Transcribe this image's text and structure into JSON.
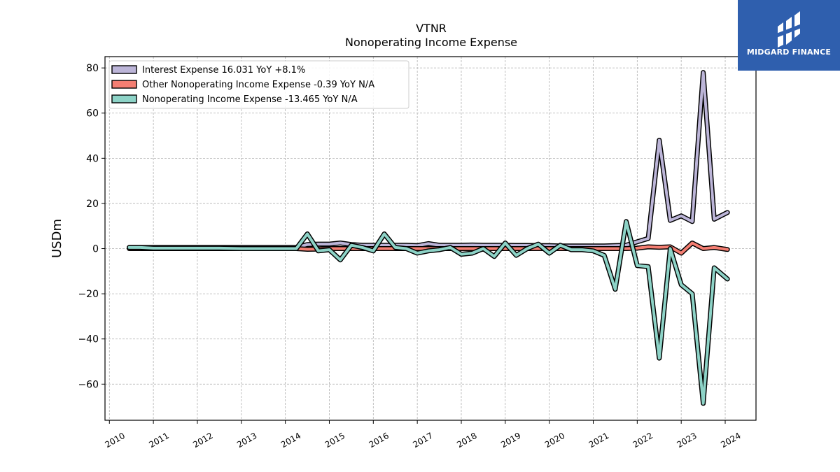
{
  "chart_data": {
    "type": "line",
    "title": "VTNR",
    "subtitle": "Nonoperating Income Expense",
    "ylabel": "USDm",
    "xlabel": "",
    "ylim": [
      -76,
      85
    ],
    "xlim": [
      2009.9,
      2024.7
    ],
    "yticks": [
      -60,
      -40,
      -20,
      0,
      20,
      40,
      60,
      80
    ],
    "ytick_labels": [
      "−60",
      "−40",
      "−20",
      "0",
      "20",
      "40",
      "60",
      "80"
    ],
    "xticks": [
      2010,
      2011,
      2012,
      2013,
      2014,
      2015,
      2016,
      2017,
      2018,
      2019,
      2020,
      2021,
      2022,
      2023,
      2024
    ],
    "xtick_labels": [
      "2010",
      "2011",
      "2012",
      "2013",
      "2014",
      "2015",
      "2016",
      "2017",
      "2018",
      "2019",
      "2020",
      "2021",
      "2022",
      "2023",
      "2024"
    ],
    "grid": true,
    "legend_position": "top-left",
    "legend_entries": [
      "Interest Expense  16.031 YoY +8.1%",
      "Other Nonoperating Income Expense  -0.39 YoY N/A",
      "Nonoperating Income Expense  -13.465 YoY N/A"
    ],
    "series": [
      {
        "name": "Interest Expense",
        "color": "#bcb5d8",
        "x": [
          2010.45,
          2010.7,
          2011.0,
          2011.5,
          2012.0,
          2012.5,
          2013.0,
          2013.5,
          2014.0,
          2014.25,
          2014.5,
          2014.75,
          2015.0,
          2015.25,
          2015.5,
          2015.75,
          2016.0,
          2016.25,
          2016.5,
          2016.75,
          2017.0,
          2017.25,
          2017.5,
          2017.75,
          2018.0,
          2018.25,
          2018.5,
          2018.75,
          2019.0,
          2019.25,
          2019.5,
          2019.75,
          2020.0,
          2020.25,
          2020.5,
          2020.75,
          2021.0,
          2021.25,
          2021.5,
          2021.75,
          2022.0,
          2022.25,
          2022.5,
          2022.75,
          2023.0,
          2023.25,
          2023.5,
          2023.75,
          2024.05
        ],
        "values": [
          0.5,
          0.5,
          0.5,
          0.5,
          0.5,
          0.5,
          0.5,
          0.5,
          0.5,
          0.5,
          1.8,
          2.0,
          2.0,
          2.5,
          1.8,
          1.5,
          1.5,
          1.5,
          1.5,
          1.5,
          1.3,
          2.2,
          1.5,
          1.5,
          1.5,
          1.6,
          1.5,
          1.5,
          1.5,
          1.4,
          1.4,
          1.3,
          1.3,
          1.2,
          1.2,
          1.2,
          1.2,
          1.2,
          1.3,
          1.5,
          3.0,
          4.5,
          48.0,
          12.5,
          14.5,
          12.0,
          78.0,
          13.0,
          16.0
        ]
      },
      {
        "name": "Other Nonoperating Income Expense",
        "color": "#f47e72",
        "x": [
          2010.45,
          2010.7,
          2011.0,
          2011.5,
          2012.0,
          2012.5,
          2013.0,
          2013.5,
          2014.0,
          2014.25,
          2014.5,
          2014.75,
          2015.0,
          2015.25,
          2015.5,
          2015.75,
          2016.0,
          2016.25,
          2016.5,
          2016.75,
          2017.0,
          2017.25,
          2017.5,
          2017.75,
          2018.0,
          2018.25,
          2018.5,
          2018.75,
          2019.0,
          2019.25,
          2019.5,
          2019.75,
          2020.0,
          2020.25,
          2020.5,
          2020.75,
          2021.0,
          2021.25,
          2021.5,
          2021.75,
          2022.0,
          2022.25,
          2022.5,
          2022.75,
          2023.0,
          2023.25,
          2023.5,
          2023.75,
          2024.05
        ],
        "values": [
          0,
          0,
          0,
          0,
          0,
          0,
          0,
          0,
          0,
          0,
          -0.3,
          -0.2,
          0,
          0,
          0,
          0,
          0,
          0,
          0,
          0,
          0,
          0,
          0,
          0,
          0,
          0,
          0,
          0,
          0,
          0,
          0,
          0,
          0,
          0,
          0,
          0,
          0,
          0,
          0,
          0,
          0.2,
          0.8,
          0.6,
          0.8,
          -2.0,
          2.5,
          0.0,
          0.5,
          -0.39
        ]
      },
      {
        "name": "Nonoperating Income Expense",
        "color": "#8dd3c7",
        "x": [
          2010.45,
          2010.7,
          2011.0,
          2011.5,
          2012.0,
          2012.5,
          2013.0,
          2013.5,
          2014.0,
          2014.25,
          2014.5,
          2014.75,
          2015.0,
          2015.25,
          2015.5,
          2015.75,
          2016.0,
          2016.25,
          2016.5,
          2016.75,
          2017.0,
          2017.25,
          2017.5,
          2017.75,
          2018.0,
          2018.25,
          2018.5,
          2018.75,
          2019.0,
          2019.25,
          2019.5,
          2019.75,
          2020.0,
          2020.25,
          2020.5,
          2020.75,
          2021.0,
          2021.25,
          2021.5,
          2021.75,
          2022.0,
          2022.25,
          2022.5,
          2022.75,
          2023.0,
          2023.25,
          2023.5,
          2023.75,
          2024.05
        ],
        "values": [
          0.5,
          0.5,
          0.2,
          0.2,
          0.2,
          0.2,
          0.0,
          0.0,
          0.0,
          0.0,
          6.5,
          -1.0,
          -0.5,
          -5.0,
          1.5,
          0.5,
          -1.0,
          6.5,
          0.5,
          0.0,
          -2.0,
          -1.0,
          -0.5,
          0.5,
          -2.5,
          -2.0,
          0.0,
          -3.5,
          2.5,
          -3.0,
          0.0,
          2.0,
          -2.0,
          1.5,
          -0.5,
          -0.5,
          -1.0,
          -3.0,
          -18.0,
          12.0,
          -7.5,
          -8.0,
          -48.5,
          0.0,
          -16.0,
          -20.0,
          -68.5,
          -8.5,
          -13.465
        ]
      }
    ]
  },
  "logo": {
    "text": "MIDGARD FINANCE",
    "background": "#2f5fae",
    "icon": "midgard-logo-mark-icon"
  }
}
